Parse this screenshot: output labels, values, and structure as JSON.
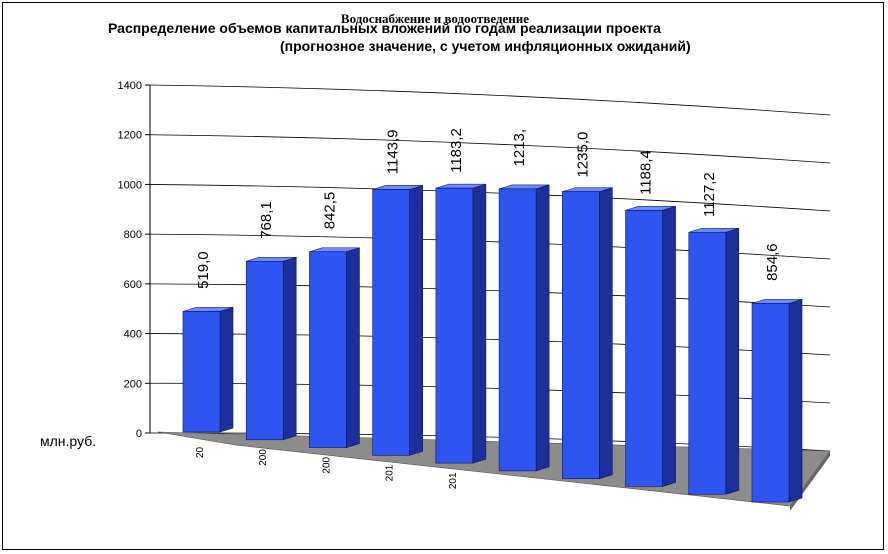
{
  "overlay_title": "Водоснабжение и водоотведение",
  "chart_data": {
    "type": "bar",
    "title": "Распределение объемов капитальных вложений по годам реализации проекта",
    "subtitle": "(прогнозное значение, с учетом инфляционных ожиданий)",
    "ylabel": "млн.руб.",
    "ylim": [
      0,
      1400
    ],
    "y_ticks": [
      "0",
      "200",
      "400",
      "600",
      "800",
      "1000",
      "1200",
      "1400"
    ],
    "categories": [
      "20",
      "200",
      "200",
      "201",
      "201",
      "",
      "",
      "",
      "",
      ""
    ],
    "values": [
      519.0,
      768.1,
      842.5,
      1143.9,
      1183.2,
      1213.1,
      1235.0,
      1188.4,
      1127.2,
      854.6
    ],
    "labels": [
      "519,0",
      "768,1",
      "842,5",
      "1143,9",
      "1183,2",
      "1213,",
      "1235,0",
      "1188,4",
      "1127,2",
      "854,6"
    ],
    "grid": true,
    "bar_color": "#2f55f0"
  }
}
